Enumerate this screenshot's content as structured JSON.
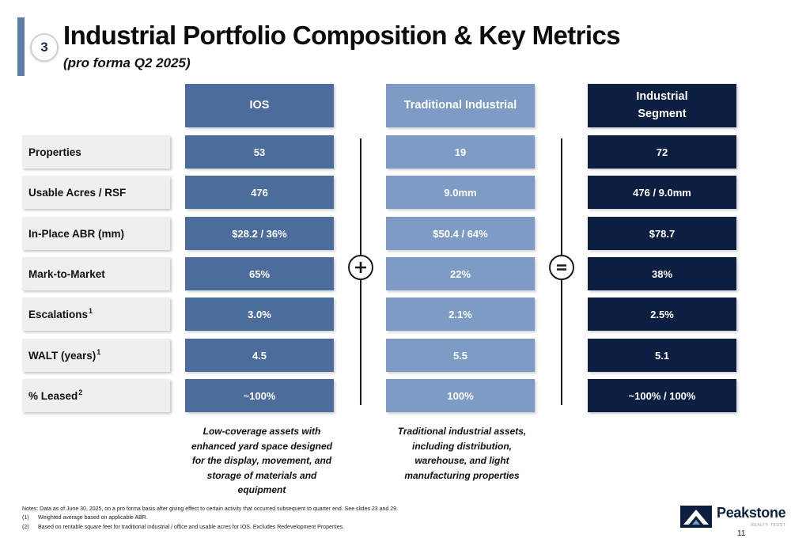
{
  "header": {
    "section_number": "3",
    "title": "Industrial Portfolio Composition & Key Metrics",
    "subtitle": "(pro forma Q2 2025)"
  },
  "columns": {
    "ios": "IOS",
    "traditional": "Traditional Industrial",
    "industrial": "Industrial\nSegment"
  },
  "rows": [
    {
      "label": "Properties",
      "sup": "",
      "ios": "53",
      "traditional": "19",
      "industrial": "72"
    },
    {
      "label": "Usable Acres / RSF",
      "sup": "",
      "ios": "476",
      "traditional": "9.0mm",
      "industrial": "476 / 9.0mm"
    },
    {
      "label": "In-Place ABR (mm)",
      "sup": "",
      "ios": "$28.2 / 36%",
      "traditional": "$50.4 / 64%",
      "industrial": "$78.7"
    },
    {
      "label": "Mark-to-Market",
      "sup": "",
      "ios": "65%",
      "traditional": "22%",
      "industrial": "38%"
    },
    {
      "label": "Escalations",
      "sup": "1",
      "ios": "3.0%",
      "traditional": "2.1%",
      "industrial": "2.5%"
    },
    {
      "label": "WALT (years)",
      "sup": "1",
      "ios": "4.5",
      "traditional": "5.5",
      "industrial": "5.1"
    },
    {
      "label": "% Leased",
      "sup": "2",
      "ios": "~100%",
      "traditional": "100%",
      "industrial": "~100% / 100%"
    }
  ],
  "operators": {
    "plus_icon": "plus-circle",
    "equals_icon": "equals-circle"
  },
  "descriptions": {
    "ios": "Low-coverage assets with enhanced yard space designed for the display, movement, and storage of materials and equipment",
    "traditional": "Traditional industrial assets, including distribution, warehouse, and light manufacturing properties"
  },
  "notes": {
    "main": "Notes: Data as of June 30, 2025, on a pro forma basis after giving effect to certain activity that occurred subsequent to quarter end. See slides 23 and 29.",
    "items": [
      {
        "num": "(1)",
        "text": "Weighted average based on applicable ABR."
      },
      {
        "num": "(2)",
        "text": "Based on rentable square feet for traditional industrial / office and usable acres for IOS. Excludes Redevelopment Properties."
      }
    ]
  },
  "logo": {
    "name": "Peakstone",
    "tagline": "REALTY TRUST"
  },
  "page_number": "11",
  "colors": {
    "ios": "#4c6d9c",
    "traditional": "#7d9bc4",
    "industrial": "#0d1f40",
    "accent": "#5e7fa8",
    "label_bg": "#efefef"
  }
}
